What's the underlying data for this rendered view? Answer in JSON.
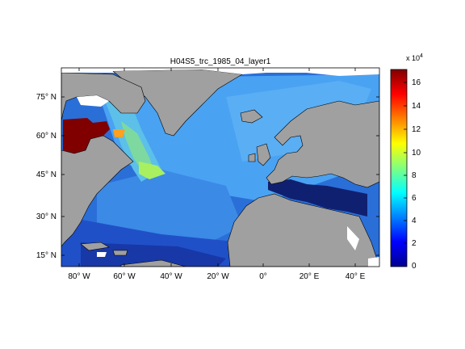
{
  "title": "H04S5_trc_1985_04_layer1",
  "lat_ticks": [
    "75° N",
    "60° N",
    "45° N",
    "30° N",
    "15° N"
  ],
  "lon_ticks": [
    "80° W",
    "60° W",
    "40° W",
    "20° W",
    "0°",
    "20° E",
    "40° E"
  ],
  "colorbar": {
    "exponent_base": "x 10",
    "exponent_power": "4",
    "ticks": [
      "16",
      "14",
      "12",
      "10",
      "8",
      "6",
      "4",
      "2",
      "0"
    ],
    "colormap": [
      "#00008f",
      "#0000ff",
      "#0080ff",
      "#00ffff",
      "#80ff80",
      "#ffff00",
      "#ff8000",
      "#ff0000",
      "#800000"
    ]
  },
  "colors": {
    "land": "#a0a0a0",
    "missing": "#ffffff",
    "ocean_high_lat": "#3a8ee8",
    "ocean_mid": "#4aa0f0",
    "ocean_low": "#1a4ec0",
    "mediterranean": "#102070"
  }
}
